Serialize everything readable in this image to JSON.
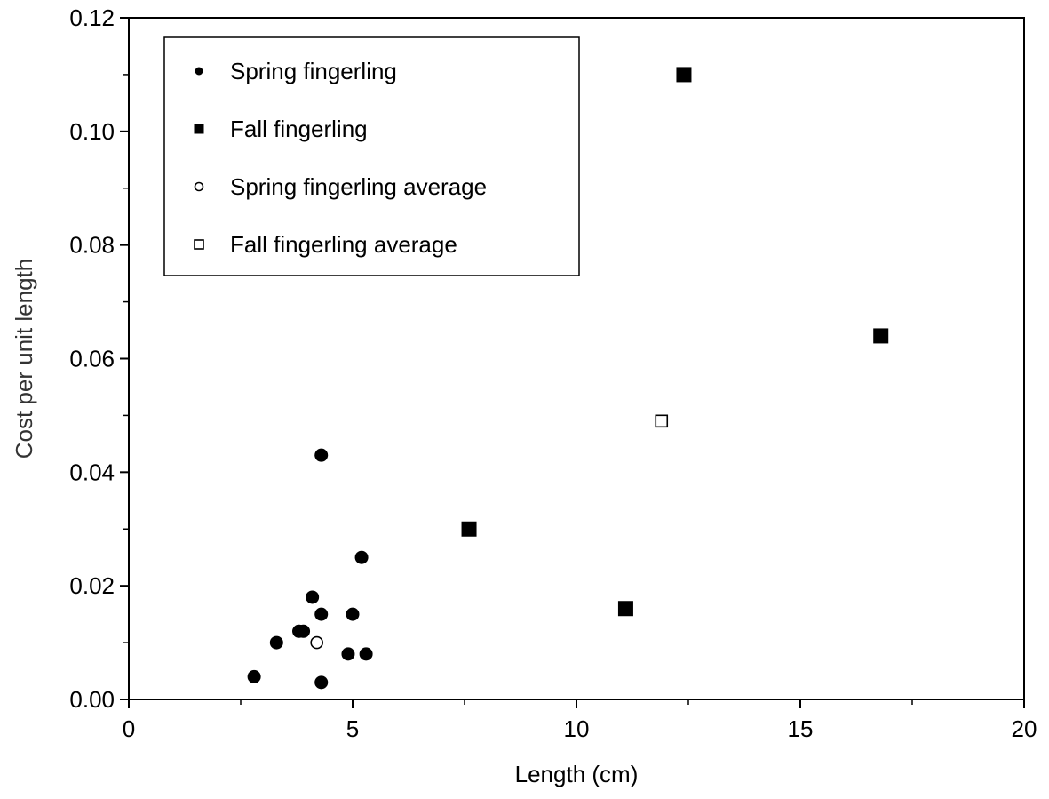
{
  "chart_data": {
    "type": "scatter",
    "title": "",
    "xlabel": "Length (cm)",
    "ylabel": "Cost per unit length",
    "xlim": [
      0,
      20
    ],
    "ylim": [
      0,
      0.12
    ],
    "xticks": [
      0,
      5,
      10,
      15,
      20
    ],
    "xtick_labels": [
      "0",
      "5",
      "10",
      "15",
      "20"
    ],
    "yticks": [
      0,
      0.02,
      0.04,
      0.06,
      0.08,
      0.1,
      0.12
    ],
    "ytick_labels": [
      "0.00",
      "0.02",
      "0.04",
      "0.06",
      "0.08",
      "0.10",
      "0.12"
    ],
    "grid": false,
    "legend_position": "top-left",
    "series": [
      {
        "name": "Spring fingerling",
        "marker": "filled-circle",
        "color": "#000000",
        "points": [
          {
            "x": 2.8,
            "y": 0.004
          },
          {
            "x": 3.3,
            "y": 0.01
          },
          {
            "x": 3.8,
            "y": 0.012
          },
          {
            "x": 3.9,
            "y": 0.012
          },
          {
            "x": 4.1,
            "y": 0.018
          },
          {
            "x": 4.3,
            "y": 0.043
          },
          {
            "x": 4.3,
            "y": 0.015
          },
          {
            "x": 4.3,
            "y": 0.003
          },
          {
            "x": 4.9,
            "y": 0.008
          },
          {
            "x": 5.0,
            "y": 0.015
          },
          {
            "x": 5.2,
            "y": 0.025
          },
          {
            "x": 5.3,
            "y": 0.008
          }
        ]
      },
      {
        "name": "Fall fingerling",
        "marker": "filled-square",
        "color": "#000000",
        "points": [
          {
            "x": 7.6,
            "y": 0.03
          },
          {
            "x": 11.1,
            "y": 0.016
          },
          {
            "x": 12.4,
            "y": 0.11
          },
          {
            "x": 16.8,
            "y": 0.064
          }
        ]
      },
      {
        "name": "Spring fingerling average",
        "marker": "open-circle",
        "color": "#000000",
        "points": [
          {
            "x": 4.2,
            "y": 0.01
          }
        ]
      },
      {
        "name": "Fall fingerling average",
        "marker": "open-square",
        "color": "#000000",
        "points": [
          {
            "x": 11.9,
            "y": 0.049
          }
        ]
      }
    ]
  }
}
